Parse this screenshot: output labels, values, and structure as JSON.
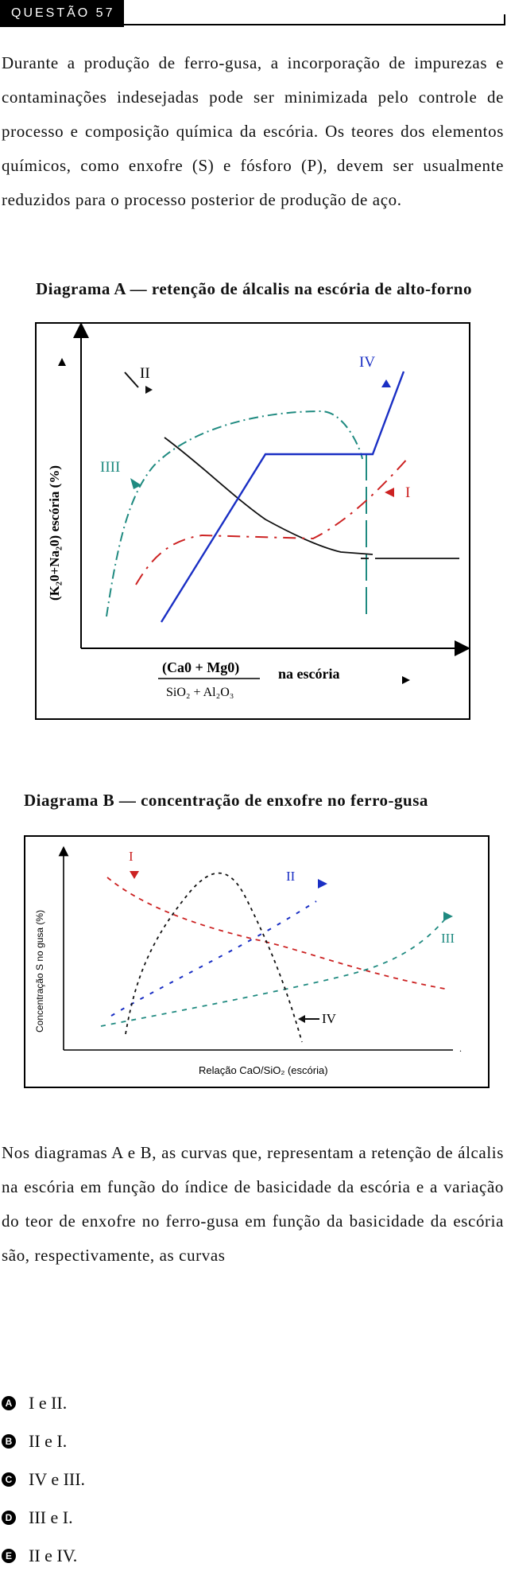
{
  "header": {
    "label": "QUESTÃO 57"
  },
  "intro": "Durante a produção de ferro-gusa, a incorporação de impurezas e contaminações indesejadas pode ser minimizada pelo controle de processo e composição química da escória. Os teores dos elementos químicos, como enxofre (S) e fósforo (P), devem ser usualmente reduzidos para o processo posterior de produção de aço.",
  "diagram_a": {
    "title": "Diagrama A — retenção de álcalis na escória de alto-forno",
    "ylabel": "(K₂0+Na₂0) escória (%)",
    "xlabel_num": "(Ca0 + Mg0)",
    "xlabel_den": "SiO₂ + Al₂O₃",
    "xlabel_suffix": "na escória",
    "curve_labels": {
      "i": "I",
      "ii": "II",
      "iii": "IIII",
      "iv": "IV"
    },
    "colors": {
      "i": "#cc2222",
      "ii": "#111111",
      "iii": "#1f8a80",
      "iv": "#1a2fc4"
    }
  },
  "diagram_b": {
    "title": "Diagrama B — concentração de enxofre no ferro-gusa",
    "ylabel": "Concentração S no gusa (%)",
    "xlabel": "Relação CaO/SiO₂ (escória)",
    "curve_labels": {
      "i": "I",
      "ii": "II",
      "iii": "III",
      "iv": "IV"
    },
    "colors": {
      "i": "#cc2222",
      "ii": "#1a2fc4",
      "iii": "#1f8a80",
      "iv": "#111111"
    }
  },
  "question": "Nos diagramas A e B, as curvas que, representam a retenção de álcalis na escória em função do índice de basicidade da escória e a variação do teor de enxofre no ferro-gusa em função da basicidade da escória são, respectivamente, as curvas",
  "choices": [
    {
      "letter": "A",
      "text": "I e II."
    },
    {
      "letter": "B",
      "text": "II e I."
    },
    {
      "letter": "C",
      "text": "IV e III."
    },
    {
      "letter": "D",
      "text": "III e I."
    },
    {
      "letter": "E",
      "text": "II e IV."
    }
  ]
}
